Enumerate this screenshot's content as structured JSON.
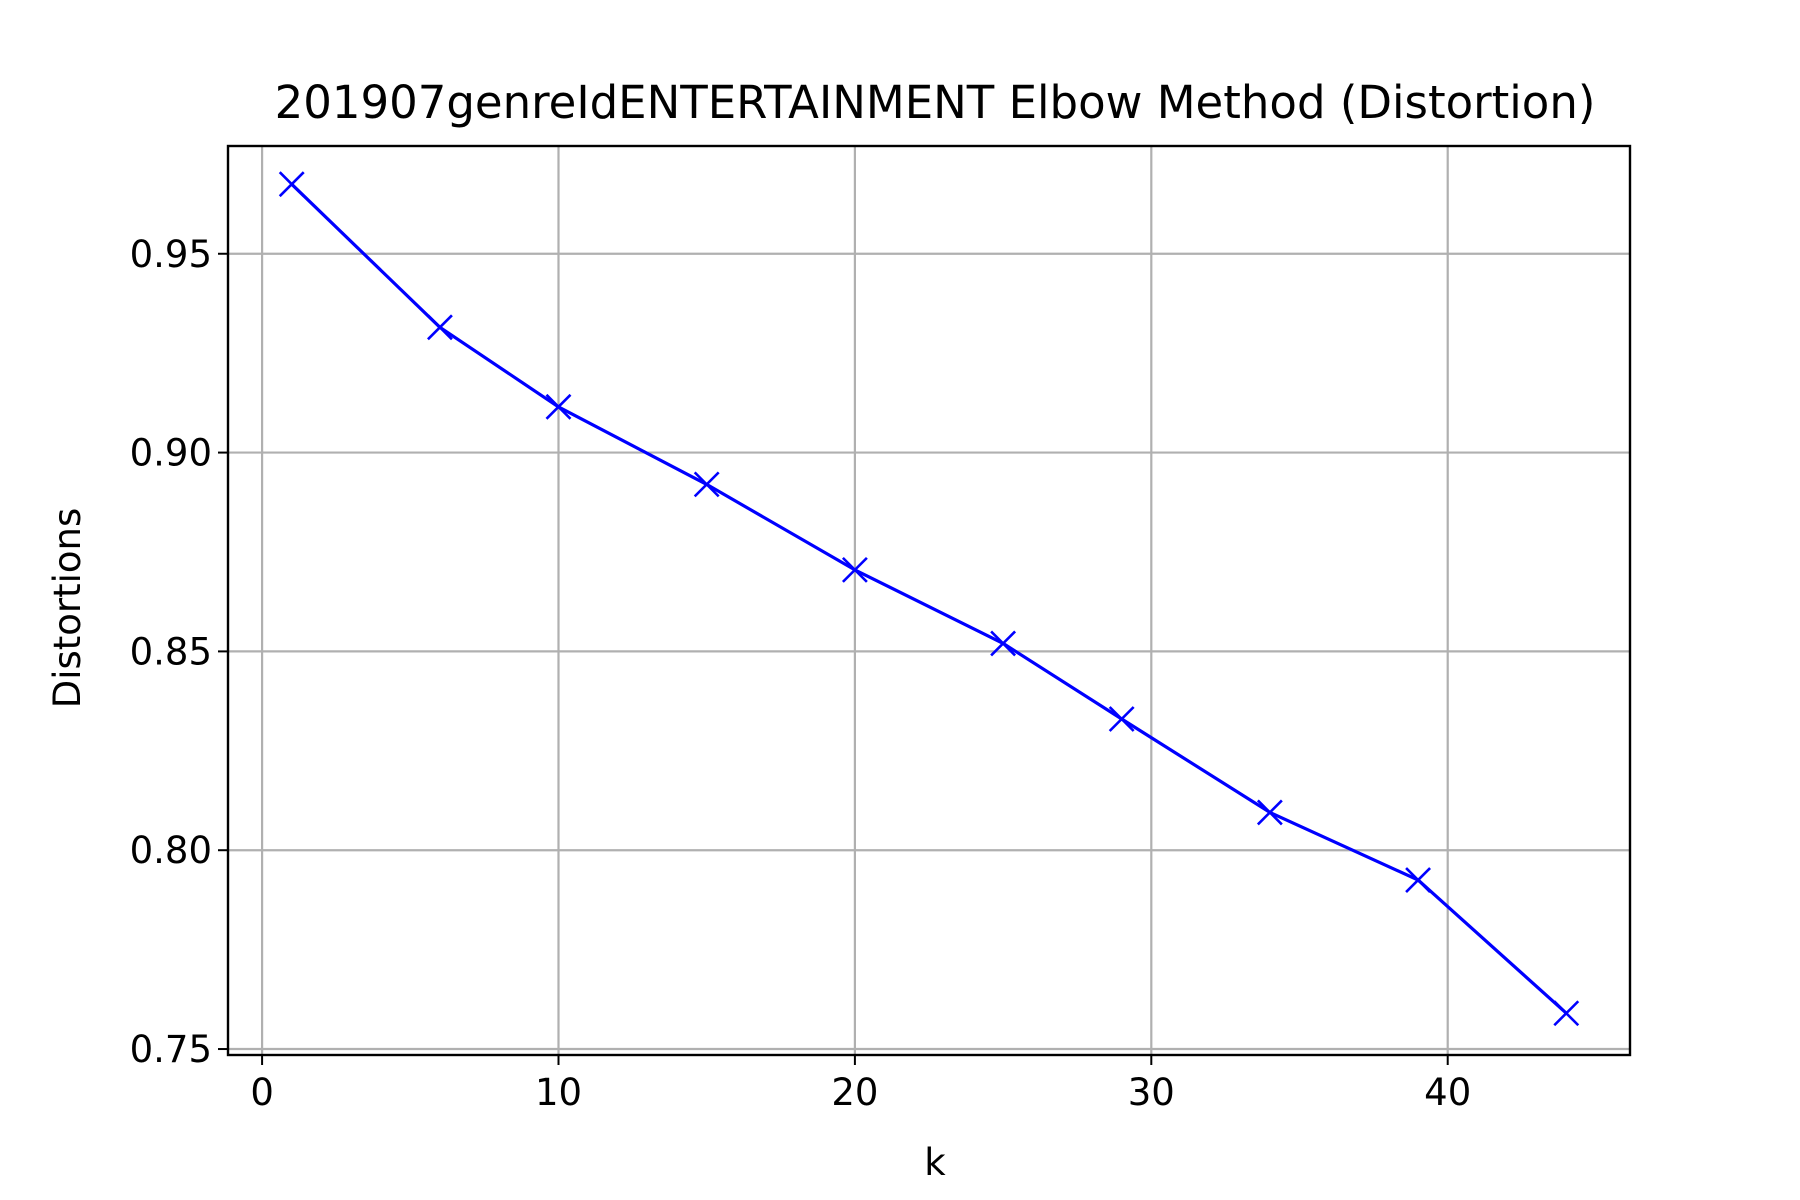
{
  "chart_data": {
    "type": "line",
    "title": "201907genreIdENTERTAINMENT Elbow Method (Distortion)",
    "xlabel": "k",
    "ylabel": "Distortions",
    "xlim": [
      -1.15,
      46.15
    ],
    "ylim": [
      0.7485,
      0.9771
    ],
    "xticks": [
      0,
      10,
      20,
      30,
      40
    ],
    "yticks": [
      0.75,
      0.8,
      0.85,
      0.9,
      0.95
    ],
    "ytick_labels": [
      "0.75",
      "0.80",
      "0.85",
      "0.90",
      "0.95"
    ],
    "grid": true,
    "marker": "x",
    "color": "#0000ff",
    "series": [
      {
        "x": [
          1,
          6,
          10,
          15,
          20,
          25,
          29,
          34,
          39,
          44
        ],
        "values": [
          0.9675,
          0.9315,
          0.9115,
          0.892,
          0.8705,
          0.852,
          0.833,
          0.8095,
          0.7925,
          0.759
        ]
      }
    ]
  }
}
